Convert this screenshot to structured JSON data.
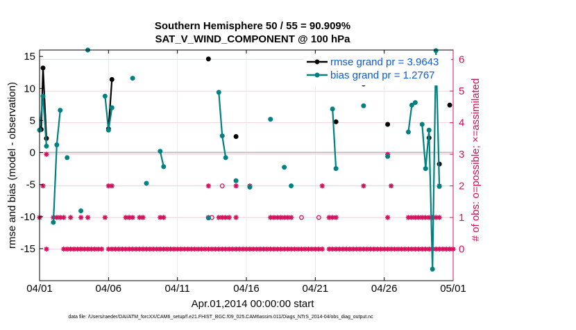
{
  "chart_data": {
    "type": "line",
    "title": "Southern Hemisphere 50 / 55 = 90.909%",
    "subtitle": "SAT_V_WIND_COMPONENT @ 100 hPa",
    "xlabel": "Apr.01,2014 00:00:00 start",
    "ylabel": "rmse and bias (model - observation)",
    "y2label": "# of obs: o=possible; ×=assimilated",
    "footer": "data file: /Users/raeder/DAI/ATM_forcXX/CAM6_setup/f.e21.FHIST_BGC.f09_025.CAM6assim.011/Diags_NTrS_2014-04/obs_diag_output.nc",
    "xlim": [
      "04/01",
      "05/01"
    ],
    "ylim": [
      -20,
      16
    ],
    "y2lim": [
      -1,
      6.3
    ],
    "x_ticks": [
      "04/01",
      "04/06",
      "04/11",
      "04/16",
      "04/21",
      "04/26",
      "05/01"
    ],
    "y_ticks": [
      "-15",
      "-10",
      "-5",
      "0",
      "5",
      "10",
      "15"
    ],
    "y2_ticks": [
      "0",
      "1",
      "2",
      "3",
      "4",
      "5",
      "6"
    ],
    "grid": true,
    "legend_position": "top-right",
    "colors": {
      "rmse": "#000000",
      "bias": "#008080",
      "obs": "#d3105c",
      "grid": "#f2c6d6",
      "zero": "#bfbfbf"
    },
    "series": [
      {
        "name": "rmse grand pr = 3.9643",
        "segments": [
          [
            [
              0.12,
              3.6
            ],
            [
              0.25,
              13.2
            ],
            [
              0.5,
              2.2
            ]
          ],
          [
            [
              5.0,
              3.7
            ],
            [
              5.25,
              11.4
            ]
          ],
          [
            [
              12.25,
              14.6
            ]
          ],
          [
            [
              14.25,
              2.5
            ]
          ],
          [
            [
              21.5,
              4.8
            ]
          ],
          [
            [
              23.5,
              10.7
            ]
          ],
          [
            [
              25.25,
              4.4
            ]
          ],
          [
            [
              28.25,
              2.3
            ]
          ],
          [
            [
              29.0,
              -1.8
            ]
          ],
          [
            [
              29.75,
              7.4
            ]
          ]
        ]
      },
      {
        "name": "bias grand pr = 1.2767",
        "segments": [
          [
            [
              0.0,
              3.5
            ],
            [
              0.25,
              8.8
            ],
            [
              0.5,
              1.0
            ]
          ],
          [
            [
              1.0,
              -10.9
            ],
            [
              1.25,
              1.2
            ],
            [
              1.5,
              6.6
            ]
          ],
          [
            [
              2.0,
              -0.8
            ]
          ],
          [
            [
              3.0,
              -9.1
            ]
          ],
          [
            [
              3.5,
              16.0
            ]
          ],
          [
            [
              4.75,
              8.8
            ],
            [
              5.0,
              3.5
            ],
            [
              5.25,
              7.0
            ]
          ],
          [
            [
              6.75,
              11.6
            ]
          ],
          [
            [
              7.75,
              -4.8
            ]
          ],
          [
            [
              8.75,
              0.2
            ],
            [
              9.0,
              -2.2
            ]
          ],
          [
            [
              12.25,
              -10.2
            ]
          ],
          [
            [
              13.0,
              9.4
            ],
            [
              13.25,
              2.6
            ],
            [
              13.5,
              -0.8
            ]
          ],
          [
            [
              14.25,
              -4.4
            ]
          ],
          [
            [
              15.25,
              -5.4
            ]
          ],
          [
            [
              16.75,
              5.2
            ]
          ],
          [
            [
              17.75,
              -2.3
            ]
          ],
          [
            [
              18.25,
              -5.2
            ]
          ],
          [
            [
              21.25,
              6.8
            ],
            [
              21.5,
              -2.5
            ]
          ],
          [
            [
              23.5,
              7.3
            ]
          ],
          [
            [
              25.25,
              -0.6
            ]
          ],
          [
            [
              26.75,
              3.2
            ],
            [
              27.0,
              7.4
            ],
            [
              27.25,
              7.8
            ]
          ],
          [
            [
              27.75,
              4.4
            ],
            [
              28.0,
              -2.5
            ],
            [
              28.25,
              3.5
            ],
            [
              28.5,
              -18.2
            ],
            [
              28.75,
              15.9
            ],
            [
              29.0,
              -5.3
            ]
          ]
        ]
      }
    ],
    "obs_assimilated": [
      {
        "count": 0,
        "x": [
          0.5,
          1.75,
          2.0,
          2.25,
          2.5,
          2.75,
          3.0,
          3.25,
          3.5,
          3.75,
          4.0,
          4.25,
          4.5,
          5.0,
          5.25,
          5.5,
          5.75,
          6.0,
          6.25,
          6.5,
          6.75,
          7.0,
          7.25,
          7.5,
          7.75,
          8.0,
          8.25,
          8.5,
          8.75,
          9.0,
          9.25,
          9.5,
          9.75,
          10.0,
          10.25,
          10.5,
          10.75,
          11.0,
          11.25,
          11.5,
          11.75,
          12.0,
          12.25,
          12.5,
          12.75,
          13.0,
          13.25,
          13.5,
          13.75,
          14.0,
          14.25,
          14.5,
          14.75,
          15.0,
          15.25,
          15.5,
          15.75,
          16.0,
          16.25,
          16.5,
          16.75,
          17.0,
          17.25,
          17.5,
          17.75,
          18.0,
          18.25,
          18.5,
          18.75,
          19.0,
          19.25,
          19.5,
          19.75,
          20.0,
          20.25,
          20.5,
          21.0,
          21.25,
          21.5,
          21.75,
          22.0,
          22.25,
          22.5,
          22.75,
          23.0,
          23.25,
          23.5,
          23.75,
          24.0,
          24.25,
          24.5,
          24.75,
          25.0,
          25.25,
          25.5,
          25.75,
          26.0,
          26.25,
          26.5,
          26.75,
          27.0,
          27.25,
          27.5,
          27.75,
          28.0,
          28.25,
          28.5,
          28.75,
          29.0,
          29.25,
          29.5,
          29.75,
          30.0
        ]
      },
      {
        "count": 1,
        "x": [
          0.0,
          1.0,
          1.25,
          1.5,
          1.75,
          2.25,
          3.0,
          3.5,
          4.75,
          6.25,
          6.5,
          6.75,
          7.25,
          7.5,
          8.75,
          9.0,
          12.25,
          13.0,
          13.25,
          13.5,
          13.75,
          14.25,
          16.75,
          17.0,
          17.25,
          17.5,
          17.75,
          18.0,
          18.25,
          21.0,
          21.25,
          21.5,
          25.25,
          26.75,
          27.0,
          27.25,
          27.5,
          27.75,
          28.0,
          28.25,
          28.5,
          28.75,
          29.0
        ]
      },
      {
        "count": 2,
        "x": [
          0.25,
          5.0,
          5.25,
          12.25,
          14.25,
          15.25,
          20.5,
          23.5,
          25.5,
          29.0
        ]
      },
      {
        "count": 3,
        "x": [
          0.5,
          25.25
        ]
      }
    ],
    "obs_possible_only": [
      {
        "count": 1,
        "x": [
          12.5,
          19.0,
          20.25
        ]
      },
      {
        "count": 2,
        "x": [
          13.25
        ]
      }
    ]
  }
}
